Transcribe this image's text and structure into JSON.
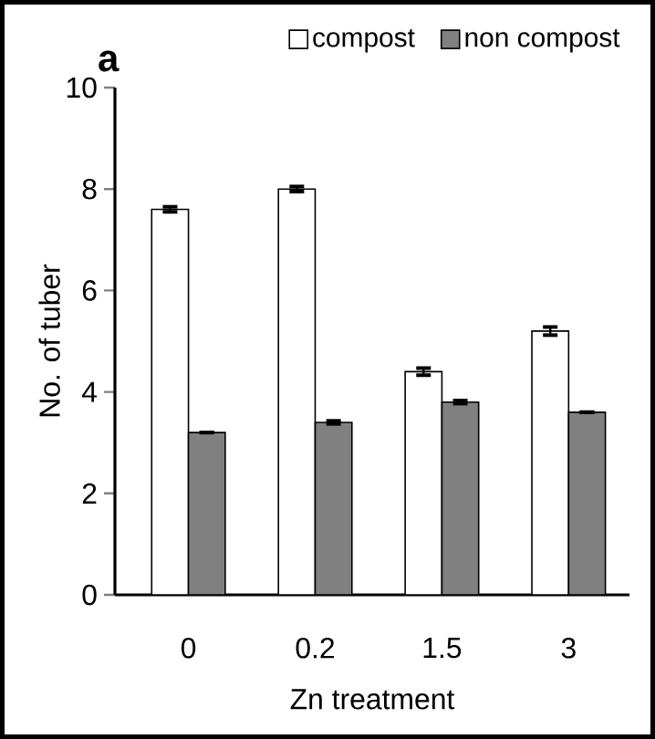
{
  "chart_data": {
    "type": "bar",
    "title": "a",
    "xlabel": "Zn treatment",
    "ylabel": "No. of tuber",
    "categories": [
      "0",
      "0.2",
      "1.5",
      "3"
    ],
    "series": [
      {
        "name": "compost",
        "color": "#ffffff",
        "values": [
          7.6,
          8.0,
          4.4,
          5.2
        ],
        "errors": [
          0.05,
          0.05,
          0.07,
          0.08
        ]
      },
      {
        "name": "non compost",
        "color": "#808080",
        "values": [
          3.2,
          3.4,
          3.8,
          3.6
        ],
        "errors": [
          null,
          0.03,
          0.03,
          null
        ]
      }
    ],
    "ylim": [
      0,
      10
    ],
    "yticks": [
      0,
      2,
      4,
      6,
      8,
      10
    ],
    "grid": false,
    "legend": "top right"
  }
}
